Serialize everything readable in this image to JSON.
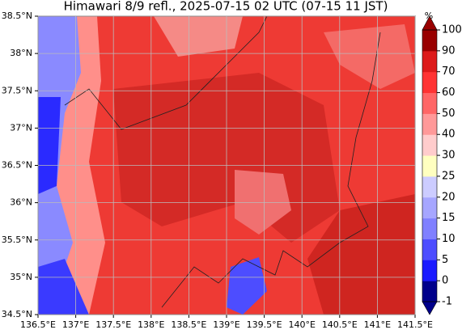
{
  "map": {
    "title": "Himawari 8/9 refl., 2025-07-15 02 UTC (07-15 11 JST)",
    "xlim": [
      136.5,
      141.5
    ],
    "ylim": [
      34.5,
      38.5
    ],
    "xticks": [
      {
        "value": 136.5,
        "label": "136.5°E"
      },
      {
        "value": 137,
        "label": "137°E"
      },
      {
        "value": 137.5,
        "label": "137.5°E"
      },
      {
        "value": 138,
        "label": "138°E"
      },
      {
        "value": 138.5,
        "label": "138.5°E"
      },
      {
        "value": 139,
        "label": "139°E"
      },
      {
        "value": 139.5,
        "label": "139.5°E"
      },
      {
        "value": 140,
        "label": "140°E"
      },
      {
        "value": 140.5,
        "label": "140.5°E"
      },
      {
        "value": 141,
        "label": "141°E"
      },
      {
        "value": 141.5,
        "label": "141.5°E"
      }
    ],
    "yticks": [
      {
        "value": 34.5,
        "label": "34.5°N"
      },
      {
        "value": 35,
        "label": "35°N"
      },
      {
        "value": 35.5,
        "label": "35.5°N"
      },
      {
        "value": 36,
        "label": "36°N"
      },
      {
        "value": 36.5,
        "label": "36.5°N"
      },
      {
        "value": 37,
        "label": "37°N"
      },
      {
        "value": 37.5,
        "label": "37.5°N"
      },
      {
        "value": 38,
        "label": "38°N"
      },
      {
        "value": 38.5,
        "label": "38.5°N"
      }
    ],
    "grid": true,
    "colorbar": {
      "unit": "%",
      "levels": [
        -1,
        0,
        5,
        10,
        15,
        20,
        25,
        30,
        40,
        50,
        60,
        70,
        90,
        100
      ],
      "colors": [
        "#00008b",
        "#1a1aff",
        "#4d4dff",
        "#8080ff",
        "#a6a6ff",
        "#ccccff",
        "#ffffc0",
        "#ffcccc",
        "#ff9999",
        "#ff6666",
        "#ff3333",
        "#dd1a1a",
        "#990000"
      ]
    }
  }
}
